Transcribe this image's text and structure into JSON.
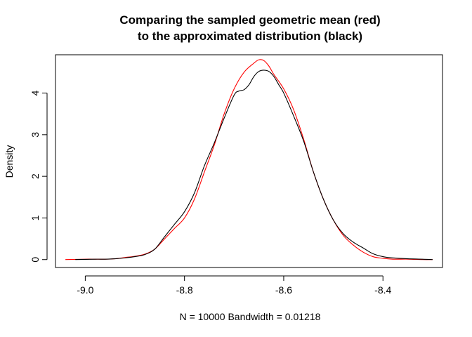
{
  "chart_data": {
    "type": "line",
    "title": [
      "Comparing the sampled geometric mean (red)",
      "to the approximated distribution (black)"
    ],
    "xlabel": "N = 10000   Bandwidth = 0.01218",
    "ylabel": "Density",
    "xlim": [
      -9.06,
      -8.28
    ],
    "ylim": [
      -0.19,
      4.92
    ],
    "x_ticks": [
      -9.0,
      -8.8,
      -8.6,
      -8.4
    ],
    "x_tick_labels": [
      "-9.0",
      "-8.8",
      "-8.6",
      "-8.4"
    ],
    "y_ticks": [
      0,
      1,
      2,
      3,
      4
    ],
    "y_tick_labels": [
      "0",
      "1",
      "2",
      "3",
      "4"
    ],
    "grid": false,
    "legend": "none",
    "series": [
      {
        "color": "#ff0000",
        "x": [
          -9.04,
          -9.0,
          -8.98,
          -8.96,
          -8.94,
          -8.92,
          -8.9,
          -8.88,
          -8.86,
          -8.84,
          -8.82,
          -8.8,
          -8.78,
          -8.76,
          -8.74,
          -8.72,
          -8.7,
          -8.68,
          -8.66,
          -8.65,
          -8.64,
          -8.63,
          -8.62,
          -8.6,
          -8.58,
          -8.56,
          -8.54,
          -8.52,
          -8.5,
          -8.48,
          -8.46,
          -8.44,
          -8.42,
          -8.4,
          -8.38,
          -8.35,
          -8.32,
          -8.3
        ],
        "y": [
          0.0,
          0.01,
          0.01,
          0.01,
          0.02,
          0.05,
          0.08,
          0.13,
          0.25,
          0.5,
          0.75,
          1.0,
          1.45,
          2.1,
          2.75,
          3.5,
          4.1,
          4.5,
          4.72,
          4.8,
          4.78,
          4.65,
          4.45,
          4.1,
          3.6,
          2.9,
          2.1,
          1.45,
          0.95,
          0.58,
          0.35,
          0.18,
          0.07,
          0.03,
          0.01,
          0.01,
          0.0,
          0.0
        ]
      },
      {
        "color": "#000000",
        "x": [
          -9.02,
          -8.98,
          -8.96,
          -8.94,
          -8.92,
          -8.9,
          -8.88,
          -8.86,
          -8.84,
          -8.82,
          -8.8,
          -8.78,
          -8.76,
          -8.74,
          -8.72,
          -8.7,
          -8.69,
          -8.68,
          -8.67,
          -8.66,
          -8.65,
          -8.64,
          -8.63,
          -8.62,
          -8.61,
          -8.6,
          -8.58,
          -8.56,
          -8.54,
          -8.52,
          -8.5,
          -8.48,
          -8.46,
          -8.44,
          -8.42,
          -8.4,
          -8.38,
          -8.35,
          -8.32,
          -8.3
        ],
        "y": [
          0.0,
          0.01,
          0.01,
          0.02,
          0.04,
          0.07,
          0.12,
          0.25,
          0.55,
          0.85,
          1.15,
          1.6,
          2.25,
          2.8,
          3.4,
          3.95,
          4.05,
          4.08,
          4.2,
          4.4,
          4.52,
          4.55,
          4.52,
          4.4,
          4.2,
          4.0,
          3.45,
          2.85,
          2.1,
          1.45,
          0.95,
          0.62,
          0.42,
          0.28,
          0.14,
          0.07,
          0.04,
          0.02,
          0.01,
          0.0
        ]
      }
    ]
  }
}
